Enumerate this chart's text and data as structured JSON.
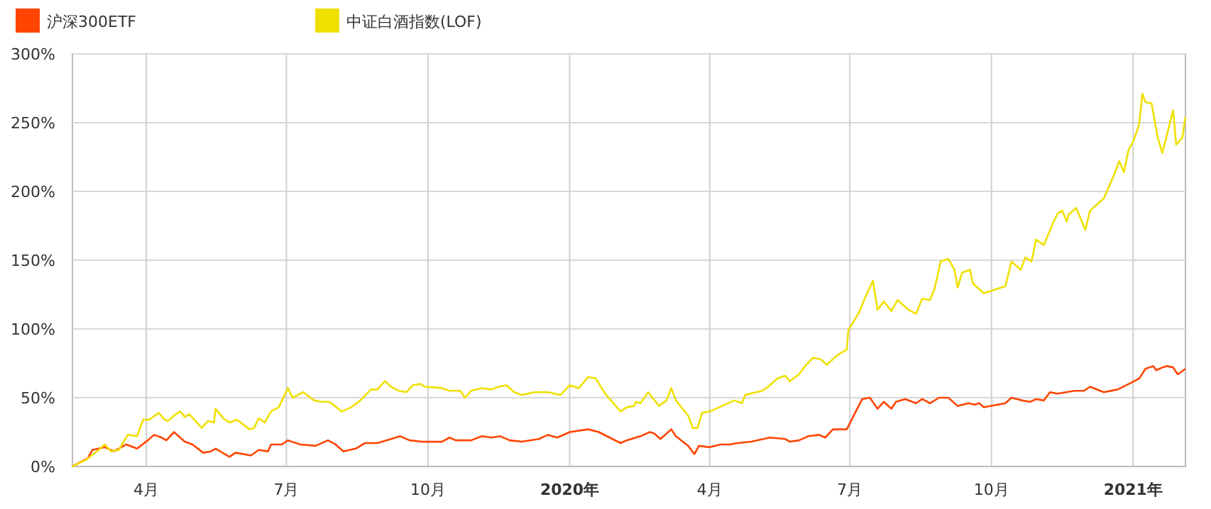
{
  "chart_data": {
    "type": "line",
    "legend": "top left",
    "grid": true,
    "marker": "none",
    "line_style": "solid",
    "xlim": [
      "2019-02-12",
      "2021-02-04"
    ],
    "xticks": [
      {
        "value": "2019-04-01",
        "label": "4月"
      },
      {
        "value": "2019-07-01",
        "label": "7月"
      },
      {
        "value": "2019-10-01",
        "label": "10月"
      },
      {
        "value": "2020-01-01",
        "label": "2020年"
      },
      {
        "value": "2020-04-01",
        "label": "4月"
      },
      {
        "value": "2020-07-01",
        "label": "7月"
      },
      {
        "value": "2020-10-01",
        "label": "10月"
      },
      {
        "value": "2021-01-01",
        "label": "2021年"
      }
    ],
    "ylim": [
      0,
      300
    ],
    "yticks": [
      {
        "value": 0,
        "label": "0%"
      },
      {
        "value": 50,
        "label": "50%"
      },
      {
        "value": 100,
        "label": "100%"
      },
      {
        "value": 150,
        "label": "150%"
      },
      {
        "value": 200,
        "label": "200%"
      },
      {
        "value": 250,
        "label": "250%"
      },
      {
        "value": 300,
        "label": "300%"
      }
    ],
    "series": [
      {
        "name": "沪深300ETF",
        "color": "#ff4500",
        "x": [
          "2019-02-12",
          "2019-02-22",
          "2019-02-25",
          "2019-03-05",
          "2019-03-11",
          "2019-03-19",
          "2019-03-26",
          "2019-04-02",
          "2019-04-06",
          "2019-04-11",
          "2019-04-14",
          "2019-04-19",
          "2019-04-26",
          "2019-05-01",
          "2019-05-08",
          "2019-05-13",
          "2019-05-16",
          "2019-05-25",
          "2019-05-29",
          "2019-06-08",
          "2019-06-13",
          "2019-06-19",
          "2019-06-21",
          "2019-06-28",
          "2019-07-02",
          "2019-07-10",
          "2019-07-20",
          "2019-07-28",
          "2019-08-02",
          "2019-08-07",
          "2019-08-15",
          "2019-08-21",
          "2019-08-29",
          "2019-09-07",
          "2019-09-13",
          "2019-09-19",
          "2019-09-27",
          "2019-10-10",
          "2019-10-15",
          "2019-10-19",
          "2019-10-29",
          "2019-11-05",
          "2019-11-11",
          "2019-11-17",
          "2019-11-23",
          "2019-12-01",
          "2019-12-12",
          "2019-12-18",
          "2019-12-24",
          "2020-01-01",
          "2020-01-13",
          "2020-01-20",
          "2020-01-27",
          "2020-02-03",
          "2020-02-07",
          "2020-02-16",
          "2020-02-22",
          "2020-02-25",
          "2020-02-29",
          "2020-03-07",
          "2020-03-10",
          "2020-03-18",
          "2020-03-22",
          "2020-03-25",
          "2020-04-01",
          "2020-04-08",
          "2020-04-14",
          "2020-04-19",
          "2020-04-28",
          "2020-05-10",
          "2020-05-20",
          "2020-05-23",
          "2020-05-29",
          "2020-06-04",
          "2020-06-11",
          "2020-06-15",
          "2020-06-20",
          "2020-06-29",
          "2020-07-09",
          "2020-07-14",
          "2020-07-19",
          "2020-07-23",
          "2020-07-28",
          "2020-07-31",
          "2020-08-06",
          "2020-08-13",
          "2020-08-17",
          "2020-08-22",
          "2020-08-28",
          "2020-09-03",
          "2020-09-09",
          "2020-09-16",
          "2020-09-20",
          "2020-09-23",
          "2020-09-26",
          "2020-10-10",
          "2020-10-14",
          "2020-10-21",
          "2020-10-26",
          "2020-10-30",
          "2020-11-04",
          "2020-11-08",
          "2020-11-13",
          "2020-11-24",
          "2020-11-30",
          "2020-12-04",
          "2020-12-13",
          "2020-12-22",
          "2020-12-31",
          "2021-01-05",
          "2021-01-09",
          "2021-01-14",
          "2021-01-16",
          "2021-01-20",
          "2021-01-23",
          "2021-01-27",
          "2021-01-30",
          "2021-02-04"
        ],
        "values": [
          0,
          6,
          12,
          14,
          11,
          16,
          13,
          19,
          23,
          21,
          19,
          25,
          18,
          16,
          10,
          11,
          13,
          7,
          10,
          8,
          12,
          11,
          16,
          16,
          19,
          16,
          15,
          19,
          16,
          11,
          13,
          17,
          17,
          20,
          22,
          19,
          18,
          18,
          21,
          19,
          19,
          22,
          21,
          22,
          19,
          18,
          20,
          23,
          21,
          25,
          27,
          25,
          21,
          17,
          19,
          22,
          25,
          24,
          20,
          27,
          22,
          15,
          9,
          15,
          14,
          16,
          16,
          17,
          18,
          21,
          20,
          18,
          19,
          22,
          23,
          21,
          27,
          27,
          49,
          50,
          42,
          47,
          42,
          47,
          49,
          46,
          49,
          46,
          50,
          50,
          44,
          46,
          45,
          46,
          43,
          46,
          50,
          48,
          47,
          49,
          48,
          54,
          53,
          55,
          55,
          58,
          54,
          56,
          61,
          64,
          71,
          73,
          70,
          72,
          73,
          72,
          67,
          71
        ]
      },
      {
        "name": "中证白酒指数(LOF)",
        "color": "#f0e000",
        "x": [
          "2019-02-12",
          "2019-02-21",
          "2019-02-28",
          "2019-03-05",
          "2019-03-09",
          "2019-03-14",
          "2019-03-20",
          "2019-03-26",
          "2019-03-30",
          "2019-04-03",
          "2019-04-09",
          "2019-04-13",
          "2019-04-15",
          "2019-04-20",
          "2019-04-23",
          "2019-04-26",
          "2019-04-29",
          "2019-05-07",
          "2019-05-11",
          "2019-05-15",
          "2019-05-16",
          "2019-05-21",
          "2019-05-25",
          "2019-05-30",
          "2019-06-07",
          "2019-06-10",
          "2019-06-13",
          "2019-06-17",
          "2019-06-21",
          "2019-06-26",
          "2019-07-02",
          "2019-07-05",
          "2019-07-12",
          "2019-07-19",
          "2019-07-24",
          "2019-07-29",
          "2019-08-06",
          "2019-08-12",
          "2019-08-18",
          "2019-08-25",
          "2019-08-29",
          "2019-09-03",
          "2019-09-07",
          "2019-09-12",
          "2019-09-17",
          "2019-09-21",
          "2019-09-26",
          "2019-09-29",
          "2019-10-10",
          "2019-10-15",
          "2019-10-22",
          "2019-10-25",
          "2019-10-29",
          "2019-11-05",
          "2019-11-11",
          "2019-11-16",
          "2019-11-21",
          "2019-11-26",
          "2019-12-01",
          "2019-12-09",
          "2019-12-18",
          "2019-12-26",
          "2020-01-01",
          "2020-01-07",
          "2020-01-13",
          "2020-01-18",
          "2020-01-24",
          "2020-02-03",
          "2020-02-07",
          "2020-02-12",
          "2020-02-13",
          "2020-02-16",
          "2020-02-21",
          "2020-02-28",
          "2020-03-04",
          "2020-03-07",
          "2020-03-10",
          "2020-03-18",
          "2020-03-21",
          "2020-03-24",
          "2020-03-27",
          "2020-04-01",
          "2020-04-07",
          "2020-04-17",
          "2020-04-22",
          "2020-04-24",
          "2020-05-05",
          "2020-05-09",
          "2020-05-15",
          "2020-05-20",
          "2020-05-23",
          "2020-05-29",
          "2020-06-02",
          "2020-06-07",
          "2020-06-12",
          "2020-06-16",
          "2020-06-23",
          "2020-06-29",
          "2020-06-30",
          "2020-07-07",
          "2020-07-11",
          "2020-07-16",
          "2020-07-19",
          "2020-07-23",
          "2020-07-28",
          "2020-08-01",
          "2020-08-08",
          "2020-08-13",
          "2020-08-17",
          "2020-08-22",
          "2020-08-25",
          "2020-08-29",
          "2020-09-03",
          "2020-09-07",
          "2020-09-09",
          "2020-09-12",
          "2020-09-17",
          "2020-09-19",
          "2020-09-26",
          "2020-10-10",
          "2020-10-14",
          "2020-10-20",
          "2020-10-23",
          "2020-10-27",
          "2020-10-30",
          "2020-11-04",
          "2020-11-10",
          "2020-11-13",
          "2020-11-16",
          "2020-11-19",
          "2020-11-20",
          "2020-11-25",
          "2020-12-01",
          "2020-12-04",
          "2020-12-13",
          "2020-12-20",
          "2020-12-23",
          "2020-12-26",
          "2020-12-29",
          "2021-01-01",
          "2021-01-05",
          "2021-01-07",
          "2021-01-09",
          "2021-01-13",
          "2021-01-17",
          "2021-01-20",
          "2021-01-27",
          "2021-01-29",
          "2021-02-02",
          "2021-02-04"
        ],
        "values": [
          0,
          5,
          11,
          16,
          11,
          12,
          23,
          22,
          34,
          34,
          39,
          34,
          33,
          38,
          40,
          36,
          38,
          28,
          33,
          32,
          42,
          35,
          32,
          34,
          27,
          28,
          35,
          32,
          40,
          43,
          57,
          50,
          54,
          48,
          47,
          47,
          40,
          43,
          48,
          56,
          56,
          62,
          58,
          55,
          54,
          59,
          60,
          58,
          57,
          55,
          55,
          50,
          55,
          57,
          56,
          58,
          59,
          54,
          52,
          54,
          54,
          52,
          59,
          57,
          65,
          64,
          53,
          40,
          43,
          44,
          47,
          46,
          54,
          44,
          48,
          57,
          48,
          37,
          28,
          28,
          39,
          40,
          43,
          48,
          46,
          52,
          55,
          58,
          64,
          66,
          62,
          67,
          73,
          79,
          78,
          74,
          81,
          85,
          99,
          112,
          123,
          135,
          114,
          120,
          113,
          121,
          114,
          111,
          122,
          121,
          129,
          149,
          151,
          143,
          130,
          141,
          143,
          133,
          126,
          131,
          149,
          143,
          152,
          149,
          165,
          161,
          177,
          184,
          186,
          178,
          183,
          188,
          172,
          186,
          195,
          213,
          222,
          214,
          230,
          236,
          249,
          271,
          265,
          264,
          239,
          228,
          259,
          234,
          239,
          254
        ]
      }
    ]
  }
}
